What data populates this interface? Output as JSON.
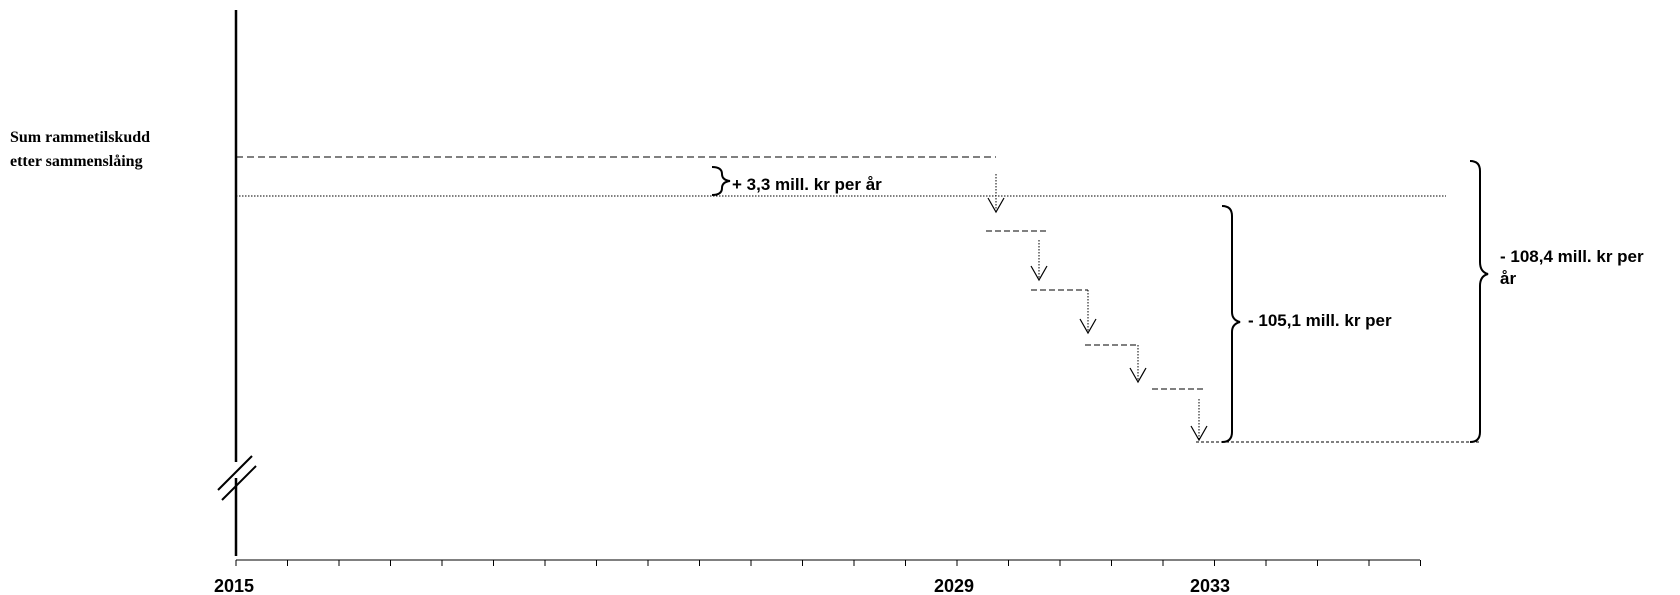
{
  "y_label": {
    "line1": "Sum rammetilskudd",
    "line2": "etter sammenslåing"
  },
  "annotations": {
    "increase": "+ 3,3 mill. kr per år",
    "decrease_steps": "- 105,1 mill. kr per",
    "decrease_total_line1": "- 108,4 mill. kr per",
    "decrease_total_line2": "år"
  },
  "x_axis": {
    "start_year": "2015",
    "mid_year": "2029",
    "end_year": "2033"
  }
}
